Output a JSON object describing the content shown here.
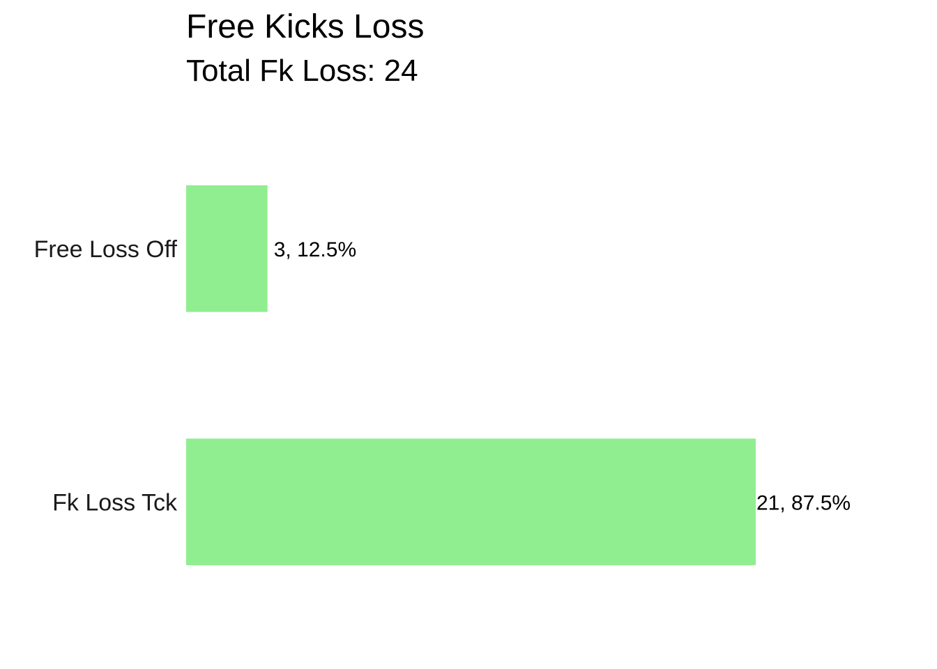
{
  "chart_data": {
    "type": "bar",
    "orientation": "horizontal",
    "title": "Free Kicks Loss",
    "subtitle": "Total Fk Loss: 24",
    "categories": [
      "Free Loss Off",
      "Fk Loss Tck"
    ],
    "values": [
      3,
      21
    ],
    "data_labels": [
      "3, 12.5%",
      "21, 87.5%"
    ],
    "xlim": [
      0,
      21
    ],
    "bar_color": "#90EE90",
    "grid": false,
    "legend": "none"
  }
}
